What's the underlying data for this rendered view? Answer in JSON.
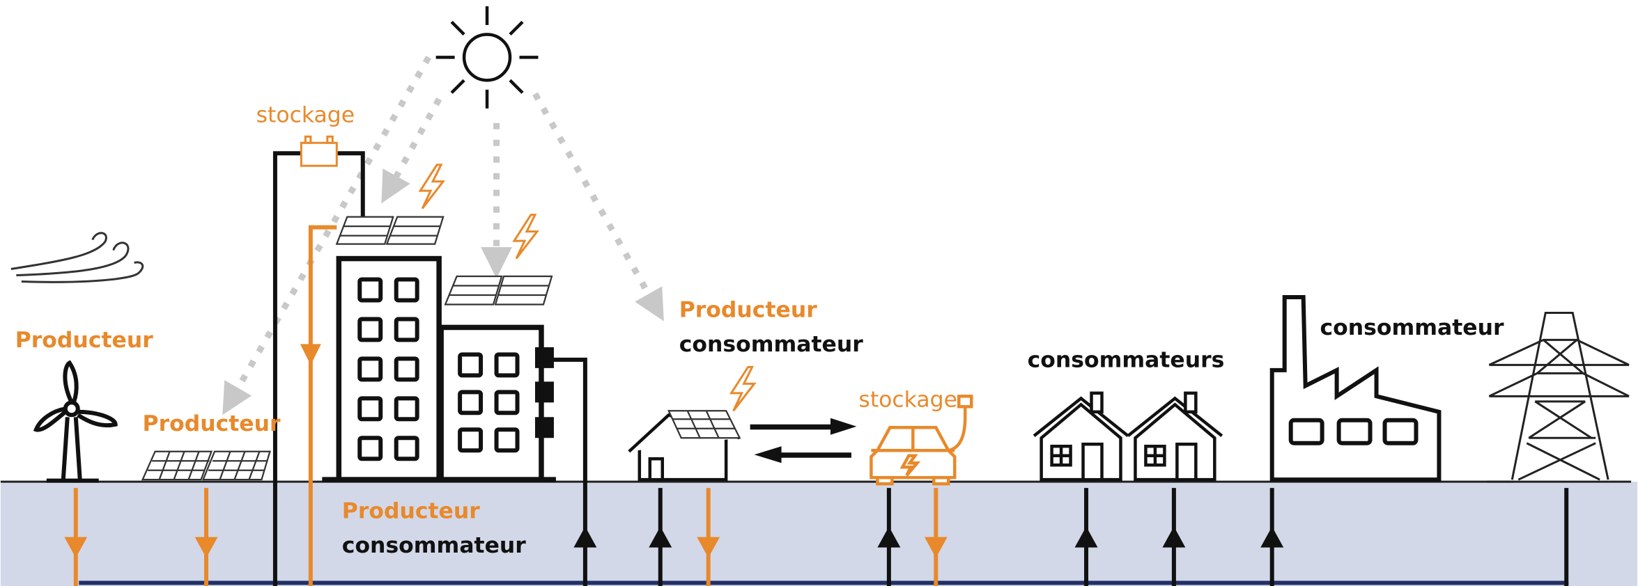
{
  "labels": {
    "wind": "Producteur",
    "solar_field": "Producteur",
    "building": {
      "line1": "Producteur",
      "line2": "consommateur"
    },
    "building_storage": "stockage",
    "house": {
      "line1": "Producteur",
      "line2": "consommateur"
    },
    "car_storage": "stockage",
    "houses": "consommateurs",
    "factory": "consommateur"
  }
}
